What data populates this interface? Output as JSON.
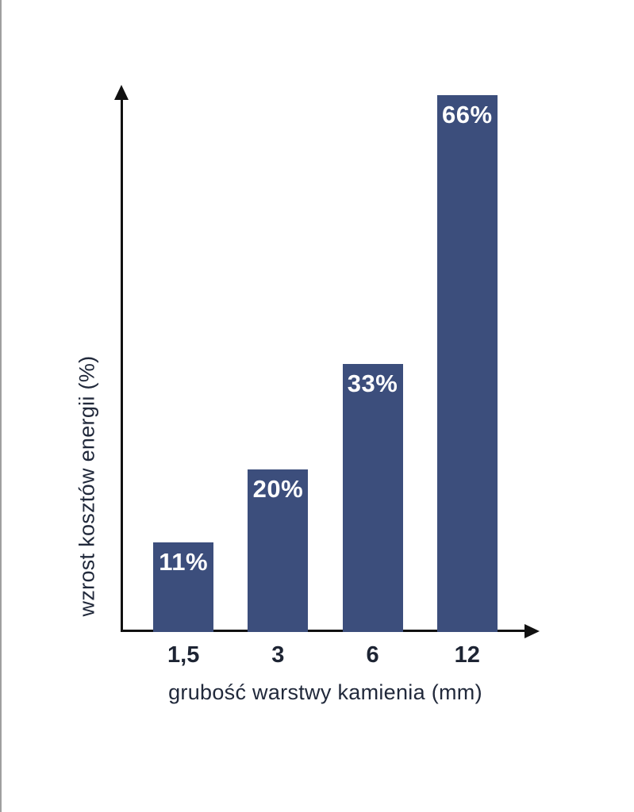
{
  "chart_data": {
    "type": "bar",
    "categories": [
      "1,5",
      "3",
      "6",
      "12"
    ],
    "values": [
      11,
      20,
      33,
      66
    ],
    "bar_labels": [
      "11%",
      "20%",
      "33%",
      "66%"
    ],
    "title": "",
    "xlabel": "grubość warstwy kamienia (mm)",
    "ylabel": "wzrost kosztów energii (%)",
    "ylim": [
      0,
      66
    ],
    "grid": false,
    "legend": false,
    "bar_color": "#3c4e7c",
    "bar_label_color": "#ffffff",
    "axis_color": "#111111"
  }
}
